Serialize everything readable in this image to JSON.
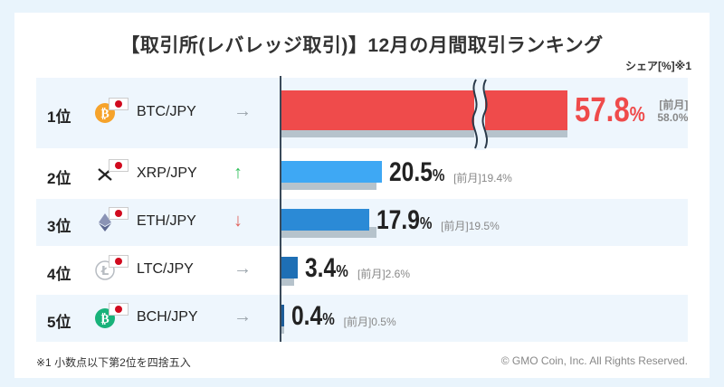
{
  "title": "【取引所(レバレッジ取引)】12月の月間取引ランキング",
  "share_label": "シェア[%]※1",
  "footnote": "※1 小数点以下第2位を四捨五入",
  "copyright": "© GMO Coin, Inc. All Rights Reserved.",
  "prev_label": "[前月]",
  "colors": {
    "up": "#2fbf5a",
    "down": "#e0605a",
    "flat": "#9aa3aa",
    "first": "#ef4b4b"
  },
  "chart_data": {
    "type": "bar",
    "orientation": "horizontal",
    "title": "【取引所(レバレッジ取引)】12月の月間取引ランキング",
    "unit": "%",
    "axis_break": true,
    "categories": [
      "1位",
      "2位",
      "3位",
      "4位",
      "5位"
    ],
    "pairs": [
      "BTC/JPY",
      "XRP/JPY",
      "ETH/JPY",
      "LTC/JPY",
      "BCH/JPY"
    ],
    "trend": [
      "flat",
      "up",
      "down",
      "flat",
      "flat"
    ],
    "coin_icons": [
      "bitcoin-icon",
      "xrp-icon",
      "ethereum-icon",
      "litecoin-icon",
      "bitcoin-cash-icon"
    ],
    "bar_colors": [
      "#ef4b4b",
      "#3ea8f4",
      "#2b8ad6",
      "#1e6fb5",
      "#1c5c98"
    ],
    "series": [
      {
        "name": "12月",
        "values": [
          57.8,
          20.5,
          17.9,
          3.4,
          0.4
        ]
      },
      {
        "name": "前月",
        "values": [
          58.0,
          19.4,
          19.5,
          2.6,
          0.5
        ]
      }
    ]
  }
}
